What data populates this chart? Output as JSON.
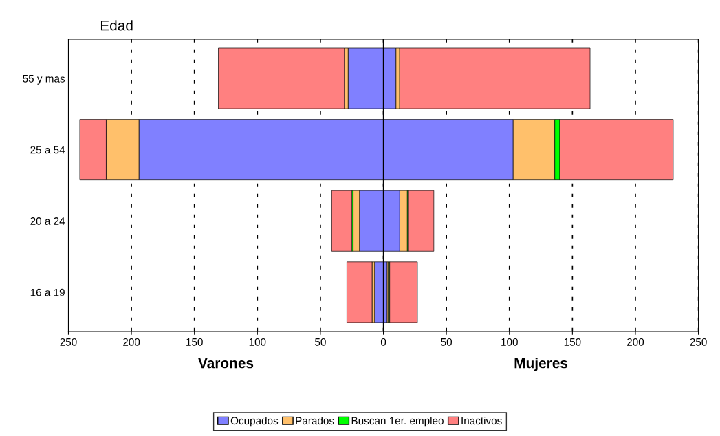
{
  "chart_data": {
    "type": "bar",
    "orientation": "horizontal",
    "stacked": true,
    "ylabel": "Edad",
    "categories": [
      "55 y mas",
      "25 a 54",
      "20 a 24",
      "16 a 19"
    ],
    "series": [
      {
        "name": "Ocupados",
        "color": "#8080ff",
        "values": [
          -28,
          -194,
          -19,
          -7
        ]
      },
      {
        "name": "Parados",
        "color": "#ffc06b",
        "values": [
          -3,
          -26,
          -5,
          -2
        ]
      },
      {
        "name": "Buscan 1er. empleo",
        "color": "#00ff00",
        "values": [
          0,
          0,
          -1,
          0
        ]
      },
      {
        "name": "Inactivos",
        "color": "#ff8080",
        "values": [
          -100,
          -21,
          -16,
          -20
        ]
      },
      {
        "color": "#8080ff",
        "values": [
          10,
          103,
          13,
          3
        ]
      },
      {
        "color": "#ffc06b",
        "values": [
          3,
          33,
          6,
          1
        ]
      },
      {
        "color": "#00ff00",
        "values": [
          0,
          4,
          1,
          1
        ]
      },
      {
        "color": "#ff8080",
        "values": [
          151,
          90,
          20,
          22
        ]
      }
    ],
    "xlim": [
      -250,
      250
    ],
    "xticks": [
      {
        "value": -250,
        "label": "250"
      },
      {
        "value": -200,
        "label": "200"
      },
      {
        "value": -150,
        "label": "150"
      },
      {
        "value": -100,
        "label": "100"
      },
      {
        "value": -50,
        "label": "50"
      },
      0,
      50,
      100,
      150,
      200,
      250
    ],
    "grid": "x",
    "legend": "bottom",
    "annotations": [
      "Varones",
      "Mujeres"
    ]
  }
}
